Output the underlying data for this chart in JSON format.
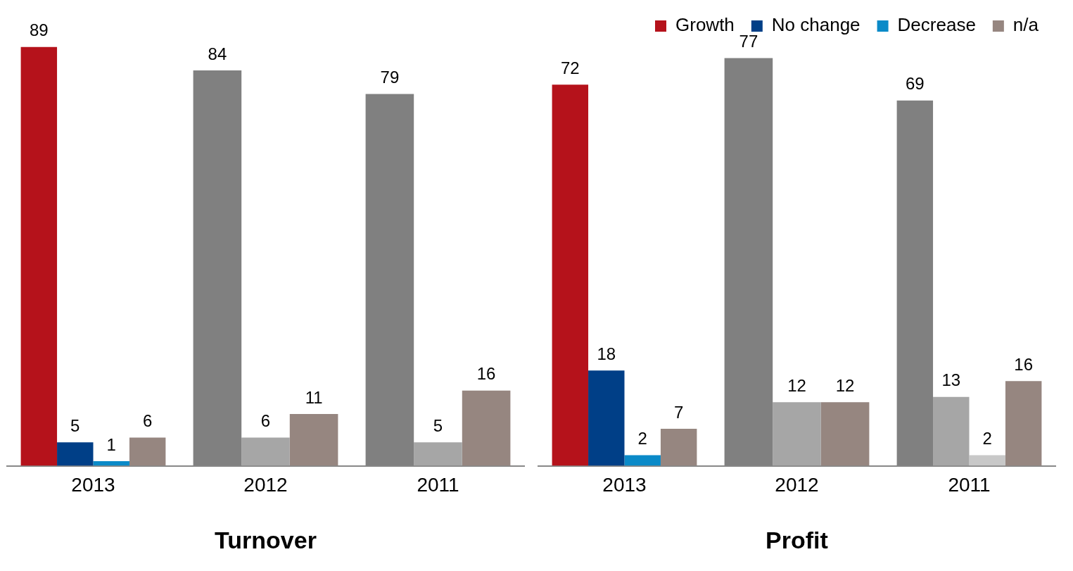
{
  "chart_data": [
    {
      "type": "bar",
      "title": "Turnover",
      "categories": [
        "2013",
        "2012",
        "2011"
      ],
      "data_labels": true,
      "series": [
        {
          "color": "#b5121b",
          "colors": [
            "#b5121b",
            "#808080",
            "#808080"
          ],
          "values": [
            89,
            84,
            79
          ]
        },
        {
          "color": "#003f87",
          "colors": [
            "#003f87",
            "#a6a6a6",
            "#a6a6a6"
          ],
          "values": [
            5,
            6,
            5
          ]
        },
        {
          "color": "#0a8ac8",
          "colors": [
            "#0a8ac8",
            "#c8c8c8",
            "#c8c8c8"
          ],
          "values": [
            1,
            null,
            null
          ]
        },
        {
          "color": "#968680",
          "colors": [
            "#968680",
            "#968680",
            "#968680"
          ],
          "values": [
            6,
            11,
            16
          ]
        }
      ]
    },
    {
      "type": "bar",
      "title": "Profit",
      "categories": [
        "2013",
        "2012",
        "2011"
      ],
      "data_labels": true,
      "legend": "top right",
      "series": [
        {
          "name": "Growth",
          "color": "#b5121b",
          "colors": [
            "#b5121b",
            "#808080",
            "#808080"
          ],
          "values": [
            72,
            77,
            69
          ]
        },
        {
          "name": "No change",
          "color": "#003f87",
          "colors": [
            "#003f87",
            "#a6a6a6",
            "#a6a6a6"
          ],
          "values": [
            18,
            12,
            13
          ]
        },
        {
          "name": "Decrease",
          "color": "#0a8ac8",
          "colors": [
            "#0a8ac8",
            "#c8c8c8",
            "#c8c8c8"
          ],
          "values": [
            2,
            null,
            2
          ]
        },
        {
          "name": "n/a",
          "color": "#968680",
          "colors": [
            "#968680",
            "#968680",
            "#968680"
          ],
          "values": [
            7,
            12,
            16
          ]
        }
      ]
    }
  ]
}
